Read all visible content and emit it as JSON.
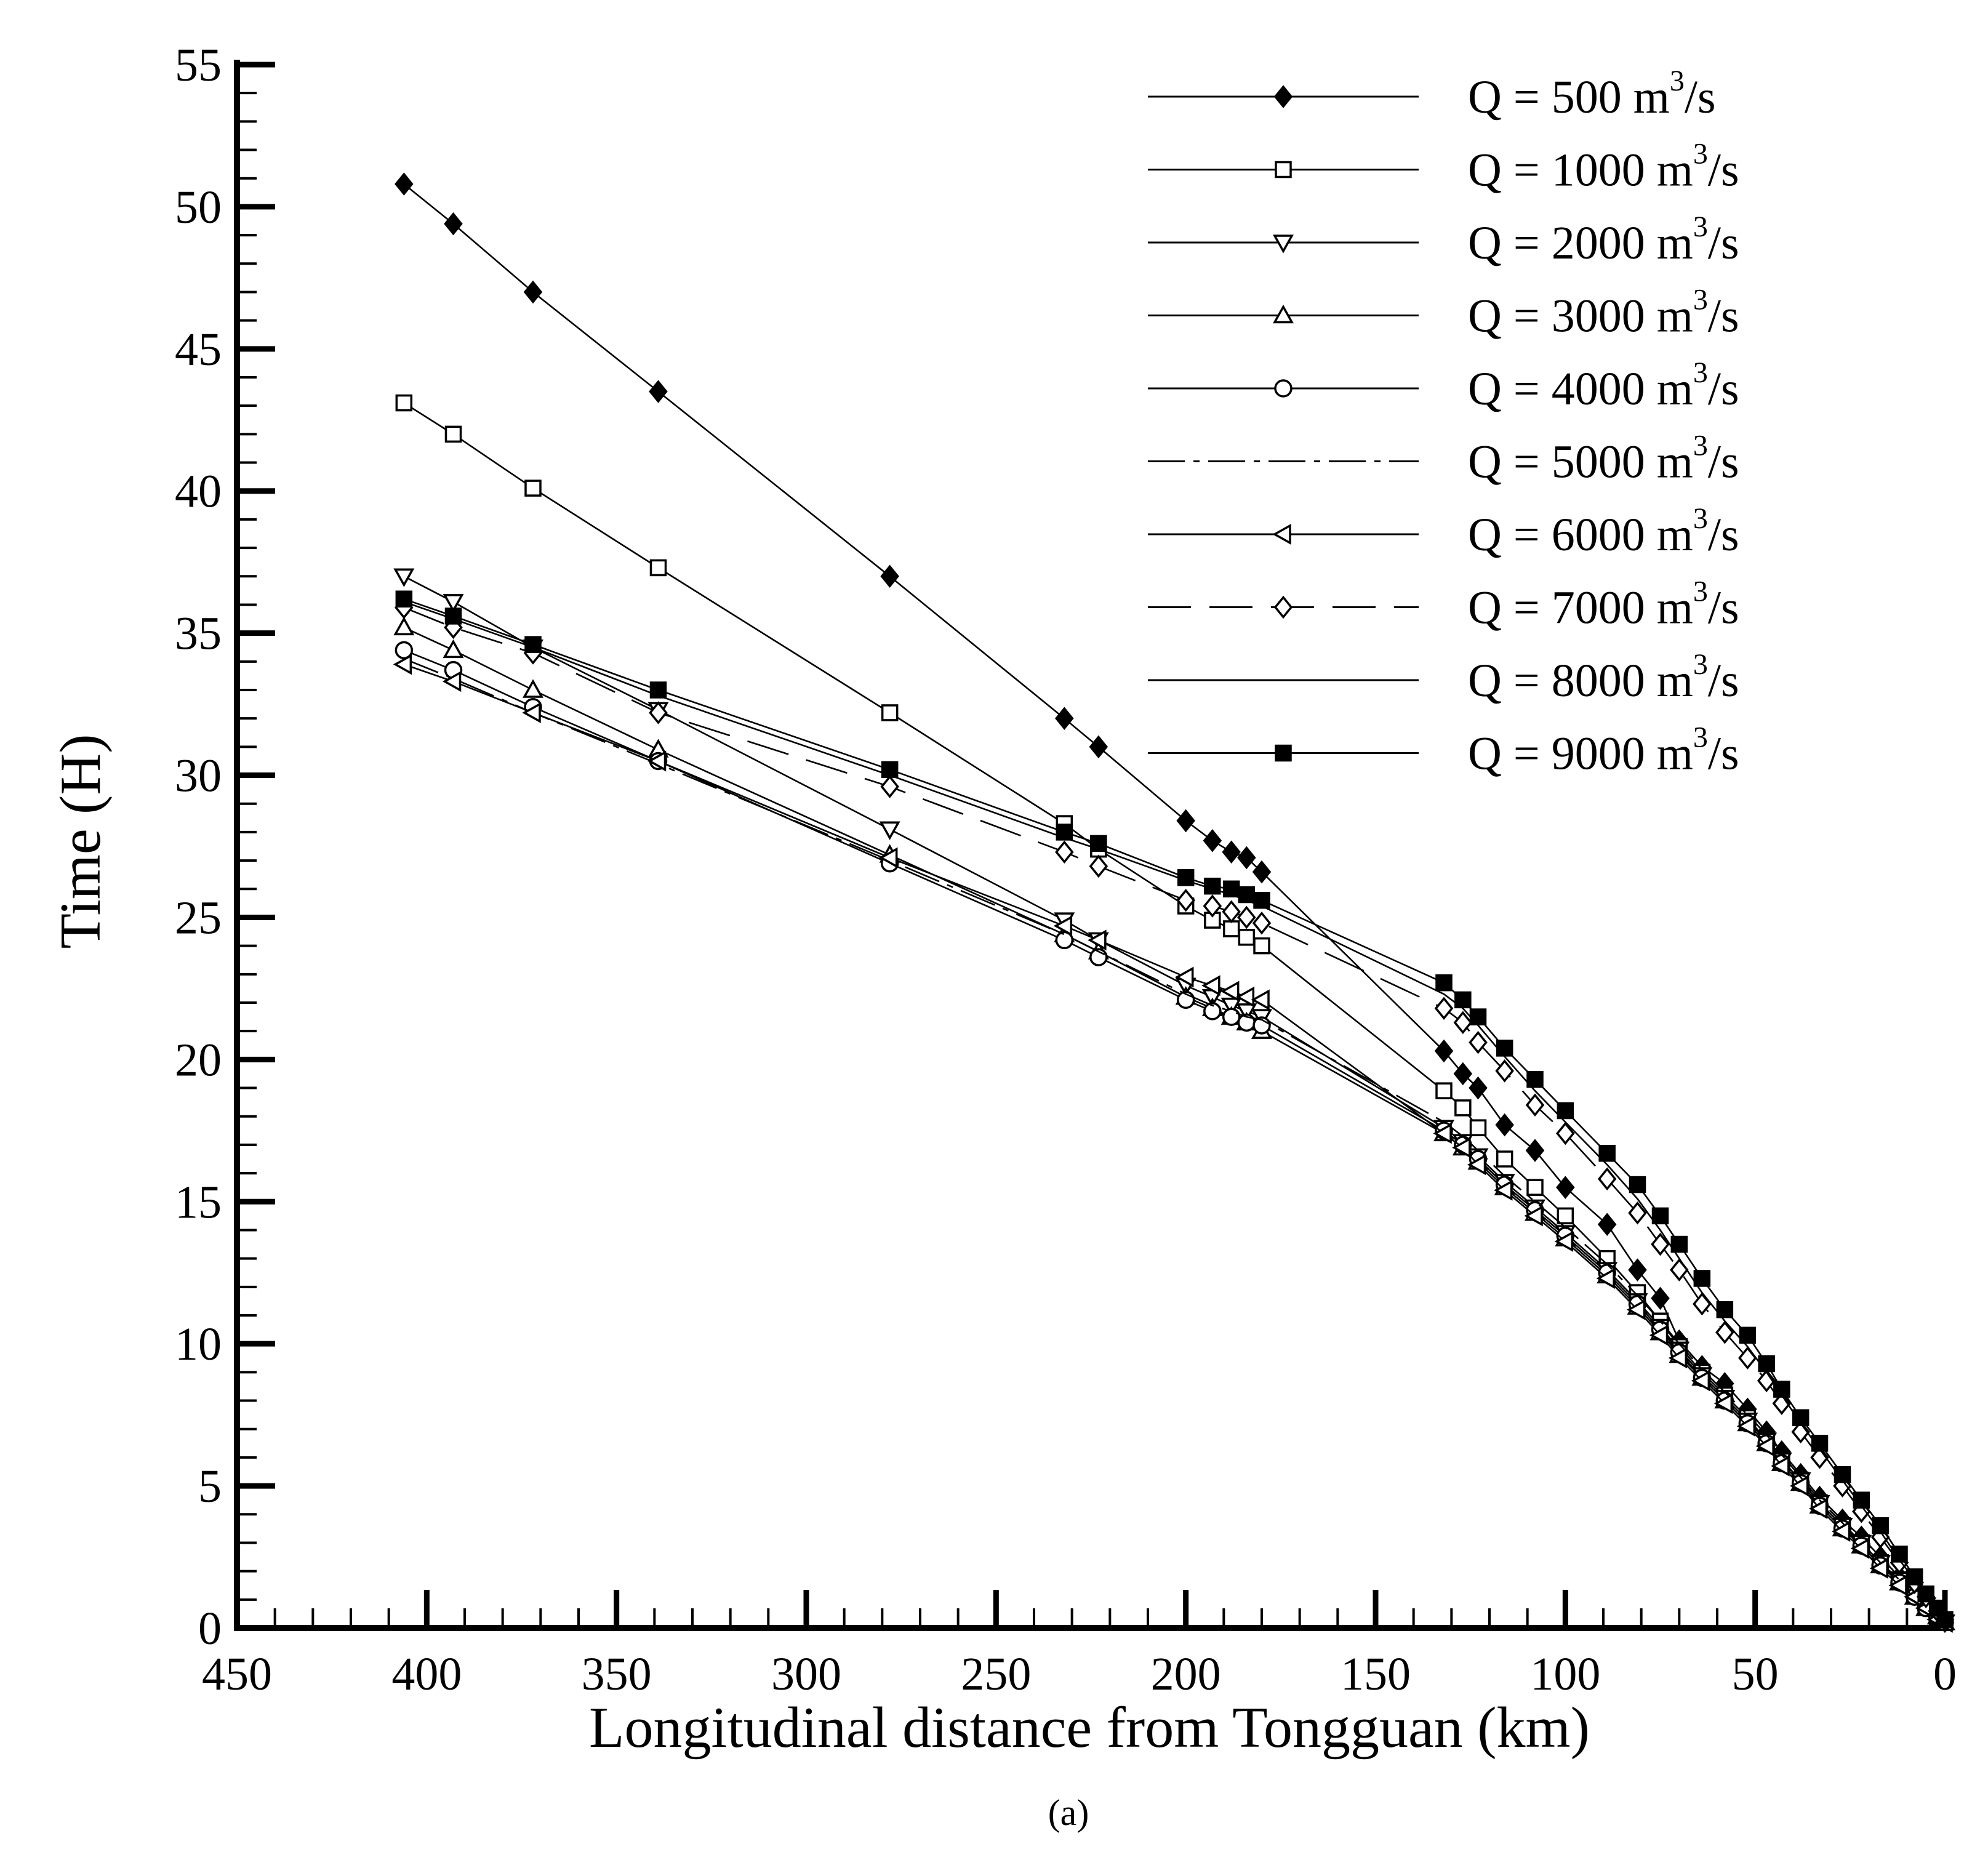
{
  "chart_data": {
    "type": "line",
    "title": "",
    "caption": "(a)",
    "xlabel": "Longitudinal distance from Tongguan (km)",
    "ylabel": "Time (H)",
    "xlim": [
      450,
      0
    ],
    "ylim": [
      0,
      55
    ],
    "x_reversed": true,
    "xticks": [
      450,
      400,
      350,
      300,
      250,
      200,
      150,
      100,
      50,
      0
    ],
    "yticks": [
      0,
      5,
      10,
      15,
      20,
      25,
      30,
      35,
      40,
      45,
      50,
      55
    ],
    "grid": false,
    "legend_position": "top-right",
    "series": [
      {
        "name": "Q = 500",
        "unit_base": "m",
        "unit_exp": "3",
        "unit_tail": "/s",
        "marker": "diamond-filled",
        "dash": "solid",
        "x": [
          406,
          393,
          372,
          339,
          278,
          232,
          223,
          200,
          193,
          188,
          184,
          180,
          132,
          127,
          123,
          116,
          108,
          100,
          89,
          81,
          75,
          70,
          64,
          58,
          52,
          47,
          43,
          38,
          33,
          27,
          22,
          17,
          12,
          8,
          5,
          2,
          0
        ],
        "y": [
          50.8,
          49.4,
          47,
          43.5,
          37,
          32,
          31,
          28.4,
          27.7,
          27.3,
          27.1,
          26.6,
          20.3,
          19.5,
          19,
          17.7,
          16.8,
          15.5,
          14.2,
          12.6,
          11.6,
          10.1,
          9.2,
          8.6,
          7.7,
          6.9,
          6.2,
          5.4,
          4.6,
          3.8,
          3.2,
          2.5,
          1.8,
          1.3,
          0.9,
          0.5,
          0.3
        ]
      },
      {
        "name": "Q = 1000",
        "unit_base": "m",
        "unit_exp": "3",
        "unit_tail": "/s",
        "marker": "square-open",
        "dash": "solid",
        "x": [
          406,
          393,
          372,
          339,
          278,
          232,
          223,
          200,
          193,
          188,
          184,
          180,
          132,
          127,
          123,
          116,
          108,
          100,
          89,
          81,
          75,
          70,
          64,
          58,
          52,
          47,
          43,
          38,
          33,
          27,
          22,
          17,
          12,
          8,
          5,
          2,
          0
        ],
        "y": [
          43.1,
          42,
          40.1,
          37.3,
          32.2,
          28.3,
          27.4,
          25.4,
          24.9,
          24.6,
          24.3,
          24,
          18.9,
          18.3,
          17.6,
          16.5,
          15.5,
          14.5,
          13,
          11.8,
          10.8,
          9.9,
          9,
          8.2,
          7.4,
          6.6,
          5.9,
          5.2,
          4.4,
          3.6,
          3,
          2.3,
          1.7,
          1.2,
          0.8,
          0.4,
          0.2
        ]
      },
      {
        "name": "Q = 2000",
        "unit_base": "m",
        "unit_exp": "3",
        "unit_tail": "/s",
        "marker": "triangle-down-open",
        "dash": "solid",
        "x": [
          406,
          393,
          372,
          339,
          278,
          232,
          223,
          200,
          193,
          188,
          184,
          180,
          132,
          127,
          123,
          116,
          108,
          100,
          89,
          81,
          75,
          70,
          64,
          58,
          52,
          47,
          43,
          38,
          33,
          27,
          22,
          17,
          12,
          8,
          5,
          2,
          0
        ],
        "y": [
          37,
          36.1,
          34.5,
          32.3,
          28.1,
          24.9,
          24.2,
          22.6,
          22.2,
          21.9,
          21.7,
          21.5,
          17.6,
          17.1,
          16.6,
          15.7,
          14.8,
          13.9,
          12.6,
          11.5,
          10.6,
          9.8,
          8.9,
          8.1,
          7.3,
          6.6,
          5.9,
          5.2,
          4.4,
          3.6,
          3,
          2.3,
          1.7,
          1.2,
          0.8,
          0.4,
          0.2
        ]
      },
      {
        "name": "Q = 3000",
        "unit_base": "m",
        "unit_exp": "3",
        "unit_tail": "/s",
        "marker": "triangle-up-open",
        "dash": "solid",
        "x": [
          406,
          393,
          372,
          339,
          278,
          232,
          223,
          200,
          193,
          188,
          184,
          180,
          132,
          127,
          123,
          116,
          108,
          100,
          89,
          81,
          75,
          70,
          64,
          58,
          52,
          47,
          43,
          38,
          33,
          27,
          22,
          17,
          12,
          8,
          5,
          2,
          0
        ],
        "y": [
          35.2,
          34.4,
          33,
          30.9,
          27.2,
          24.4,
          23.8,
          22.2,
          21.8,
          21.5,
          21.3,
          21,
          17.4,
          16.9,
          16.4,
          15.5,
          14.6,
          13.7,
          12.4,
          11.3,
          10.4,
          9.6,
          8.8,
          8,
          7.2,
          6.5,
          5.8,
          5.1,
          4.3,
          3.5,
          2.9,
          2.2,
          1.6,
          1.1,
          0.7,
          0.4,
          0.2
        ]
      },
      {
        "name": "Q = 4000",
        "unit_base": "m",
        "unit_exp": "3",
        "unit_tail": "/s",
        "marker": "circle-open",
        "dash": "solid",
        "x": [
          406,
          393,
          372,
          339,
          278,
          232,
          223,
          200,
          193,
          188,
          184,
          180,
          132,
          127,
          123,
          116,
          108,
          100,
          89,
          81,
          75,
          70,
          64,
          58,
          52,
          47,
          43,
          38,
          33,
          27,
          22,
          17,
          12,
          8,
          5,
          2,
          0
        ],
        "y": [
          34.4,
          33.7,
          32.4,
          30.5,
          26.9,
          24.2,
          23.6,
          22.1,
          21.7,
          21.5,
          21.3,
          21.2,
          17.5,
          17,
          16.5,
          15.6,
          14.7,
          13.8,
          12.5,
          11.4,
          10.5,
          9.7,
          8.8,
          8,
          7.2,
          6.5,
          5.8,
          5.1,
          4.3,
          3.5,
          2.9,
          2.2,
          1.6,
          1.1,
          0.7,
          0.4,
          0.2
        ]
      },
      {
        "name": "Q = 5000",
        "unit_base": "m",
        "unit_exp": "3",
        "unit_tail": "/s",
        "marker": "none",
        "dash": "dashdot",
        "x": [
          406,
          393,
          372,
          339,
          278,
          232,
          223,
          200,
          193,
          188,
          184,
          180,
          132,
          127,
          123,
          116,
          108,
          100,
          89,
          81,
          75,
          70,
          64,
          58,
          52,
          47,
          43,
          38,
          33,
          27,
          22,
          17,
          12,
          8,
          5,
          2,
          0
        ],
        "y": [
          34.1,
          33.4,
          32.2,
          30.4,
          27,
          24.4,
          23.8,
          22.3,
          21.9,
          21.7,
          21.5,
          21.4,
          17.8,
          17.3,
          16.8,
          15.9,
          15,
          14.1,
          12.8,
          11.7,
          10.8,
          10,
          9.1,
          8.3,
          7.5,
          6.8,
          6.1,
          5.3,
          4.5,
          3.7,
          3,
          2.3,
          1.7,
          1.2,
          0.8,
          0.4,
          0.2
        ]
      },
      {
        "name": "Q = 6000",
        "unit_base": "m",
        "unit_exp": "3",
        "unit_tail": "/s",
        "marker": "triangle-left-open",
        "dash": "solid",
        "x": [
          406,
          393,
          372,
          339,
          278,
          232,
          223,
          200,
          193,
          188,
          184,
          180,
          132,
          127,
          123,
          116,
          108,
          100,
          89,
          81,
          75,
          70,
          64,
          58,
          52,
          47,
          43,
          38,
          33,
          27,
          22,
          17,
          12,
          8,
          5,
          2,
          0
        ],
        "y": [
          33.9,
          33.3,
          32.2,
          30.5,
          27.1,
          24.7,
          24.2,
          22.9,
          22.6,
          22.4,
          22.2,
          22.1,
          17.4,
          16.9,
          16.3,
          15.4,
          14.5,
          13.6,
          12.3,
          11.2,
          10.3,
          9.5,
          8.7,
          7.9,
          7.1,
          6.4,
          5.7,
          5,
          4.2,
          3.4,
          2.8,
          2.1,
          1.5,
          1.1,
          0.7,
          0.3,
          0.2
        ]
      },
      {
        "name": "Q = 7000",
        "unit_base": "m",
        "unit_exp": "3",
        "unit_tail": "/s",
        "marker": "diamond-open",
        "dash": "longdash",
        "x": [
          406,
          393,
          372,
          339,
          278,
          232,
          223,
          200,
          193,
          188,
          184,
          180,
          132,
          127,
          123,
          116,
          108,
          100,
          89,
          81,
          75,
          70,
          64,
          58,
          52,
          47,
          43,
          38,
          33,
          27,
          22,
          17,
          12,
          8,
          5,
          2,
          0
        ],
        "y": [
          35.9,
          35.2,
          34.3,
          32.2,
          29.6,
          27.3,
          26.8,
          25.6,
          25.4,
          25.2,
          25,
          24.8,
          21.8,
          21.3,
          20.6,
          19.6,
          18.4,
          17.4,
          15.8,
          14.6,
          13.5,
          12.6,
          11.4,
          10.4,
          9.5,
          8.7,
          7.9,
          6.9,
          6,
          5,
          4.1,
          3.2,
          2.3,
          1.6,
          1.1,
          0.6,
          0.3
        ]
      },
      {
        "name": "Q = 8000",
        "unit_base": "m",
        "unit_exp": "3",
        "unit_tail": "/s",
        "marker": "none",
        "dash": "solid",
        "x": [
          406,
          393,
          372,
          339,
          278,
          232,
          223,
          200,
          193,
          188,
          184,
          180,
          132,
          127,
          123,
          116,
          108,
          100,
          89,
          81,
          75,
          70,
          64,
          58,
          52,
          47,
          43,
          38,
          33,
          27,
          22,
          17,
          12,
          8,
          5,
          2,
          0
        ],
        "y": [
          36.1,
          35.5,
          34.5,
          32.8,
          30,
          27.8,
          27.4,
          26.3,
          26,
          25.8,
          25.6,
          25.4,
          22.3,
          21.8,
          21.2,
          20.1,
          18.9,
          17.8,
          16.3,
          15.1,
          14,
          13,
          11.8,
          10.8,
          9.9,
          9,
          8.2,
          7.2,
          6.3,
          5.2,
          4.3,
          3.4,
          2.4,
          1.7,
          1.1,
          0.6,
          0.3
        ]
      },
      {
        "name": "Q = 9000",
        "unit_base": "m",
        "unit_exp": "3",
        "unit_tail": "/s",
        "marker": "square-filled",
        "dash": "solid",
        "x": [
          406,
          393,
          372,
          339,
          278,
          232,
          223,
          200,
          193,
          188,
          184,
          180,
          132,
          127,
          123,
          116,
          108,
          100,
          89,
          81,
          75,
          70,
          64,
          58,
          52,
          47,
          43,
          38,
          33,
          27,
          22,
          17,
          12,
          8,
          5,
          2,
          0
        ],
        "y": [
          36.2,
          35.6,
          34.6,
          33,
          30.2,
          28,
          27.6,
          26.4,
          26.1,
          26,
          25.8,
          25.6,
          22.7,
          22.1,
          21.5,
          20.4,
          19.3,
          18.2,
          16.7,
          15.6,
          14.5,
          13.5,
          12.3,
          11.2,
          10.3,
          9.3,
          8.4,
          7.4,
          6.5,
          5.4,
          4.5,
          3.6,
          2.6,
          1.8,
          1.2,
          0.7,
          0.3
        ]
      }
    ]
  }
}
